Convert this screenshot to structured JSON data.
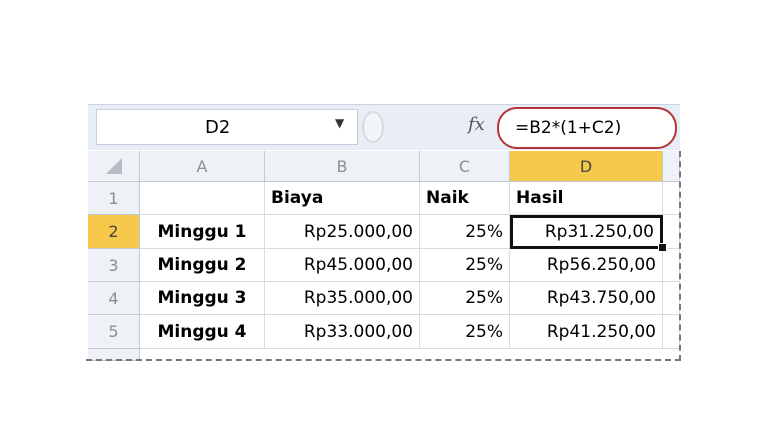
{
  "formula_bar": {
    "name_box": "D2",
    "formula": "=B2*(1+C2)",
    "fx_label": "fx"
  },
  "columns": [
    "A",
    "B",
    "C",
    "D"
  ],
  "selected_column": "D",
  "selected_row": "2",
  "rows": [
    {
      "num": "1",
      "cells": [
        "",
        "Biaya",
        "Naik",
        "Hasil"
      ]
    },
    {
      "num": "2",
      "cells": [
        "Minggu 1",
        "Rp25.000,00",
        "25%",
        "Rp31.250,00"
      ]
    },
    {
      "num": "3",
      "cells": [
        "Minggu 2",
        "Rp45.000,00",
        "25%",
        "Rp56.250,00"
      ]
    },
    {
      "num": "4",
      "cells": [
        "Minggu 3",
        "Rp35.000,00",
        "25%",
        "Rp43.750,00"
      ]
    },
    {
      "num": "5",
      "cells": [
        "Minggu 4",
        "Rp33.000,00",
        "25%",
        "Rp41.250,00"
      ]
    }
  ],
  "colors": {
    "highlight": "#f7c94a",
    "formula_circle": "#b3343b"
  }
}
